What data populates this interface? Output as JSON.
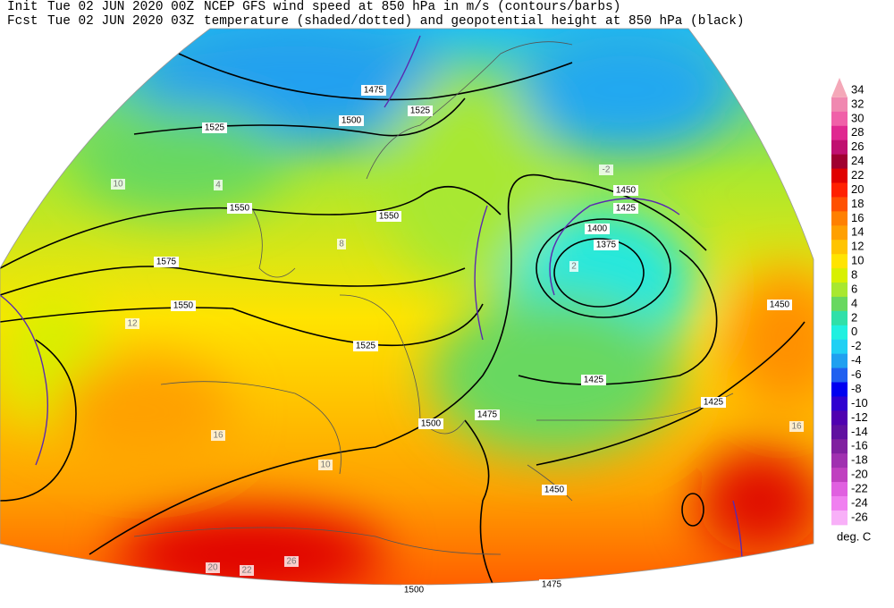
{
  "header": {
    "init_label": "Init",
    "init_time": "Tue 02 JUN 2020 00Z",
    "fcst_label": "Fcst",
    "fcst_time": "Tue 02 JUN 2020 03Z",
    "line1": "NCEP GFS wind speed at 850 hPa in m/s (contours/barbs)",
    "line2": "temperature (shaded/dotted) and geopotential height at 850 hPa (black)"
  },
  "colorbar": {
    "unit": "deg. C",
    "labels": [
      "34",
      "32",
      "30",
      "28",
      "26",
      "24",
      "22",
      "20",
      "18",
      "16",
      "14",
      "12",
      "10",
      "8",
      "6",
      "4",
      "2",
      "0",
      "-2",
      "-4",
      "-6",
      "-8",
      "-10",
      "-12",
      "-14",
      "-16",
      "-18",
      "-20",
      "-22",
      "-24",
      "-26"
    ],
    "colors": [
      "#f4a8b8",
      "#f088b0",
      "#f060a8",
      "#e02890",
      "#c01070",
      "#a00030",
      "#e00000",
      "#ff2000",
      "#ff5000",
      "#ff8000",
      "#ffa000",
      "#ffc400",
      "#ffe400",
      "#d8f000",
      "#a8e830",
      "#68d860",
      "#30e0a8",
      "#20f0e0",
      "#20d0f4",
      "#20a0f0",
      "#2060f0",
      "#0000f0",
      "#3000d0",
      "#5000b0",
      "#6010a0",
      "#8020a0",
      "#a030b0",
      "#c040c0",
      "#e060e0",
      "#f080f0",
      "#f8b0f8"
    ]
  },
  "map": {
    "height_labels": [
      "1525",
      "1500",
      "1475",
      "1550",
      "1575",
      "1550",
      "1525",
      "1550",
      "1500",
      "1475",
      "1450",
      "1425",
      "1400",
      "1375",
      "1425",
      "1425",
      "1450",
      "1450",
      "1500",
      "1475",
      "1525"
    ],
    "temp_labels": [
      "20",
      "22",
      "26",
      "16",
      "12",
      "10",
      "8",
      "4",
      "2",
      "-2",
      "10",
      "16"
    ]
  }
}
